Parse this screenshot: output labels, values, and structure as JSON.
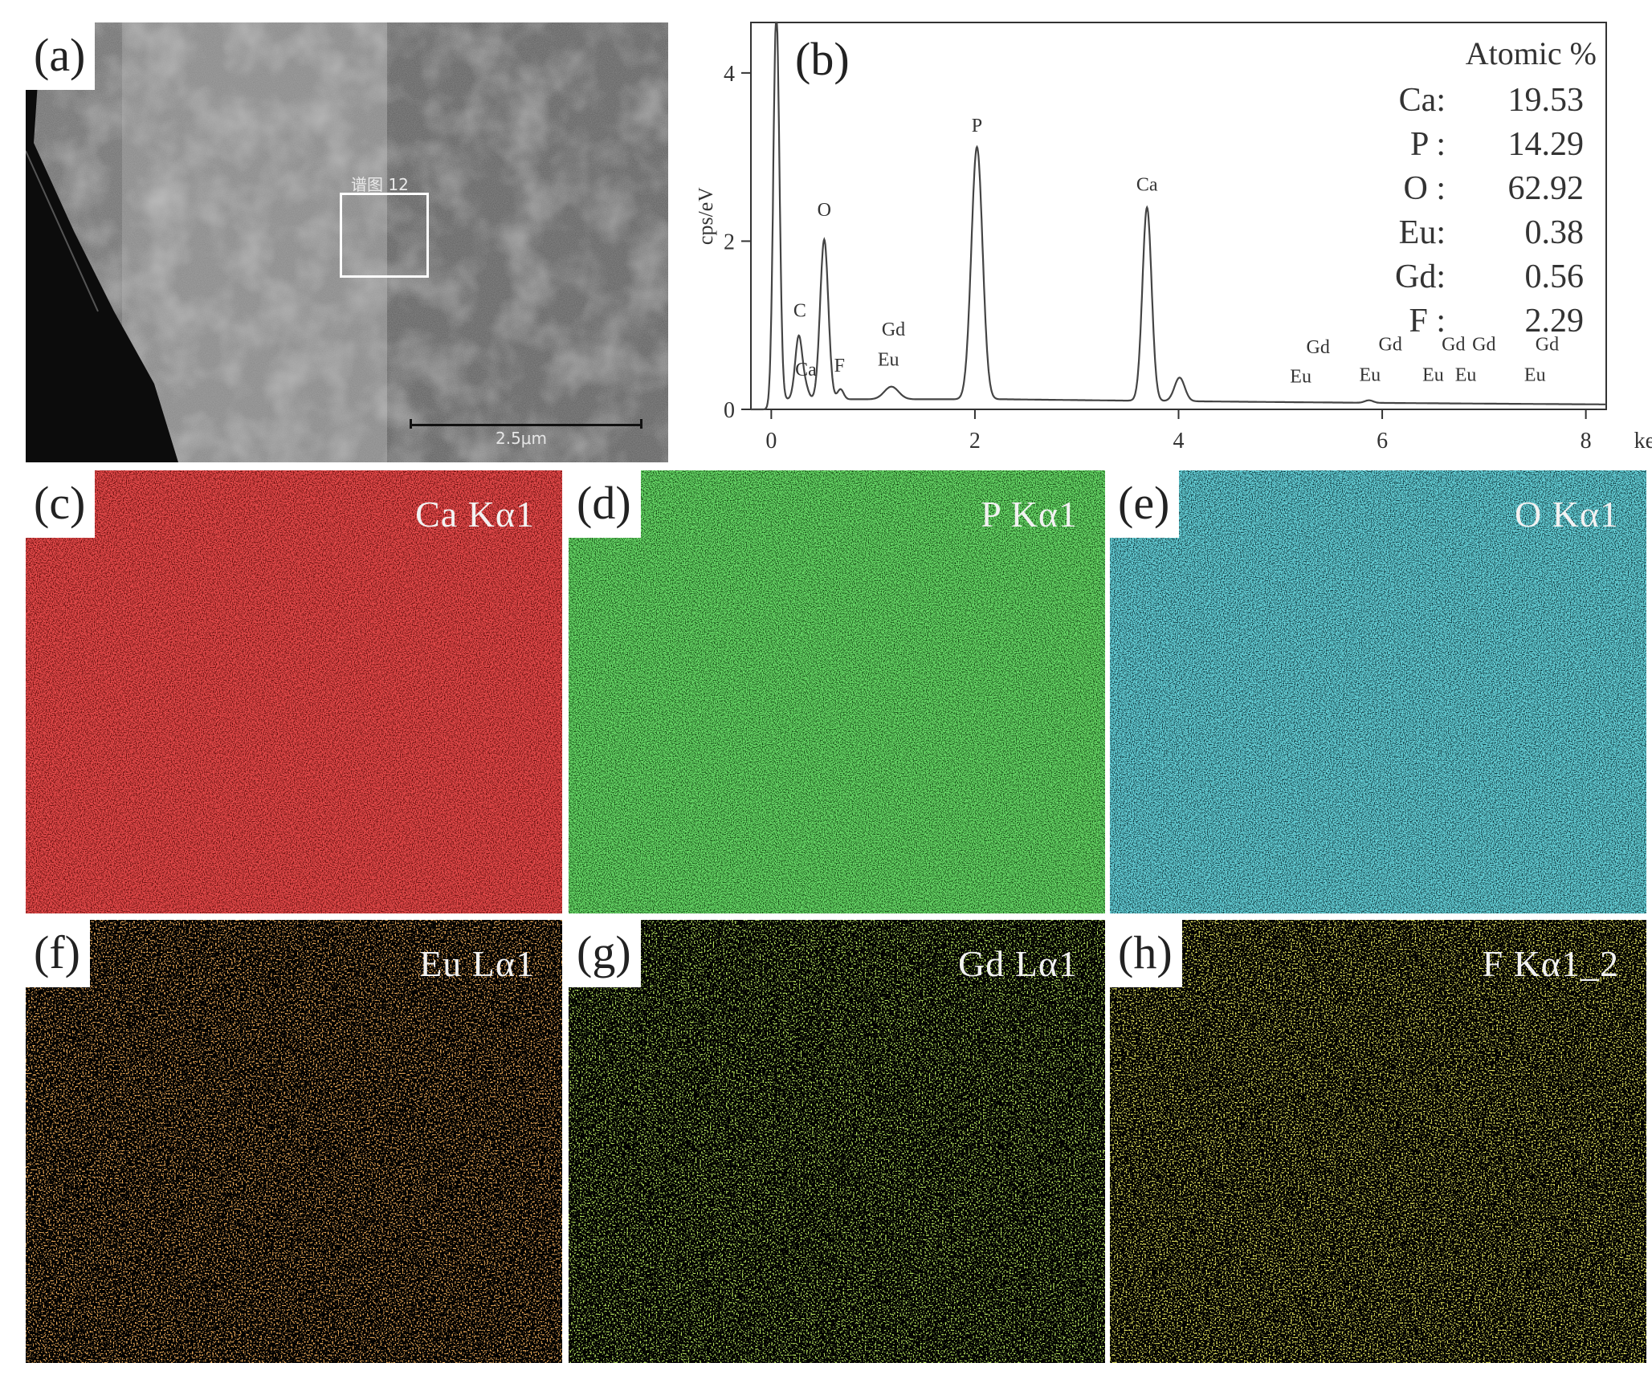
{
  "figure": {
    "panel_a": {
      "label": "(a)",
      "region_label": "谱图 12",
      "scale_bar": "2.5μm"
    },
    "panel_b": {
      "label": "(b)"
    },
    "maps": [
      {
        "id": "c",
        "label": "(c)",
        "element": "Ca Kα1",
        "color": "#d81414",
        "bg": "#5a0808",
        "density": 0.9
      },
      {
        "id": "d",
        "label": "(d)",
        "element": "P Kα1",
        "color": "#28c428",
        "bg": "#0a3a0a",
        "density": 0.9
      },
      {
        "id": "e",
        "label": "(e)",
        "element": "O Kα1",
        "color": "#26b6c6",
        "bg": "#06262a",
        "density": 0.75
      },
      {
        "id": "f",
        "label": "(f)",
        "element": "Eu Lα1",
        "color": "#d2661a",
        "bg": "#000000",
        "density": 0.12
      },
      {
        "id": "g",
        "label": "(g)",
        "element": "Gd Lα1",
        "color": "#7cc81e",
        "bg": "#000000",
        "density": 0.12
      },
      {
        "id": "h",
        "label": "(h)",
        "element": "F Kα1_2",
        "color": "#c8c81e",
        "bg": "#000000",
        "density": 0.18
      }
    ]
  },
  "chart_data": {
    "type": "line",
    "xlabel": "keV",
    "ylabel": "cps/eV",
    "xlim": [
      -0.2,
      8.2
    ],
    "ylim": [
      0,
      4.6
    ],
    "xticks": [
      0,
      2,
      4,
      6,
      8
    ],
    "yticks": [
      0,
      2,
      4
    ],
    "peaks": [
      {
        "x": 0.05,
        "h": 4.6,
        "w": 0.03
      },
      {
        "x": 0.27,
        "h": 0.75,
        "w": 0.035
      },
      {
        "x": 0.34,
        "h": 0.12,
        "w": 0.03
      },
      {
        "x": 0.52,
        "h": 1.9,
        "w": 0.04
      },
      {
        "x": 0.68,
        "h": 0.12,
        "w": 0.03
      },
      {
        "x": 1.18,
        "h": 0.15,
        "w": 0.07
      },
      {
        "x": 2.02,
        "h": 3.0,
        "w": 0.055
      },
      {
        "x": 3.69,
        "h": 2.3,
        "w": 0.045
      },
      {
        "x": 4.01,
        "h": 0.28,
        "w": 0.05
      },
      {
        "x": 5.87,
        "h": 0.03,
        "w": 0.04
      }
    ],
    "baseline": 0.12,
    "peak_labels": [
      {
        "text": "C",
        "x": 0.28,
        "y": 1.1
      },
      {
        "text": "Ca",
        "x": 0.34,
        "y": 0.4
      },
      {
        "text": "O",
        "x": 0.52,
        "y": 2.3
      },
      {
        "text": "F",
        "x": 0.67,
        "y": 0.45
      },
      {
        "text": "Gd",
        "x": 1.2,
        "y": 0.88
      },
      {
        "text": "Eu",
        "x": 1.15,
        "y": 0.52
      },
      {
        "text": "P",
        "x": 2.02,
        "y": 3.3
      },
      {
        "text": "Ca",
        "x": 3.69,
        "y": 2.6
      },
      {
        "text": "Gd",
        "x": 5.37,
        "y": 0.67
      },
      {
        "text": "Eu",
        "x": 5.2,
        "y": 0.32
      },
      {
        "text": "Gd",
        "x": 6.08,
        "y": 0.7
      },
      {
        "text": "Eu",
        "x": 5.88,
        "y": 0.34
      },
      {
        "text": "Gd",
        "x": 6.7,
        "y": 0.7
      },
      {
        "text": "Gd",
        "x": 7.0,
        "y": 0.7
      },
      {
        "text": "Eu",
        "x": 6.5,
        "y": 0.34
      },
      {
        "text": "Eu",
        "x": 6.82,
        "y": 0.34
      },
      {
        "text": "Gd",
        "x": 7.62,
        "y": 0.7
      },
      {
        "text": "Eu",
        "x": 7.5,
        "y": 0.34
      }
    ],
    "composition": {
      "title": "Atomic %",
      "rows": [
        {
          "element": "Ca:",
          "value": "19.53"
        },
        {
          "element": "P :",
          "value": "14.29"
        },
        {
          "element": "O :",
          "value": "62.92"
        },
        {
          "element": "Eu:",
          "value": "0.38"
        },
        {
          "element": "Gd:",
          "value": "0.56"
        },
        {
          "element": "F :",
          "value": "2.29"
        }
      ]
    }
  }
}
